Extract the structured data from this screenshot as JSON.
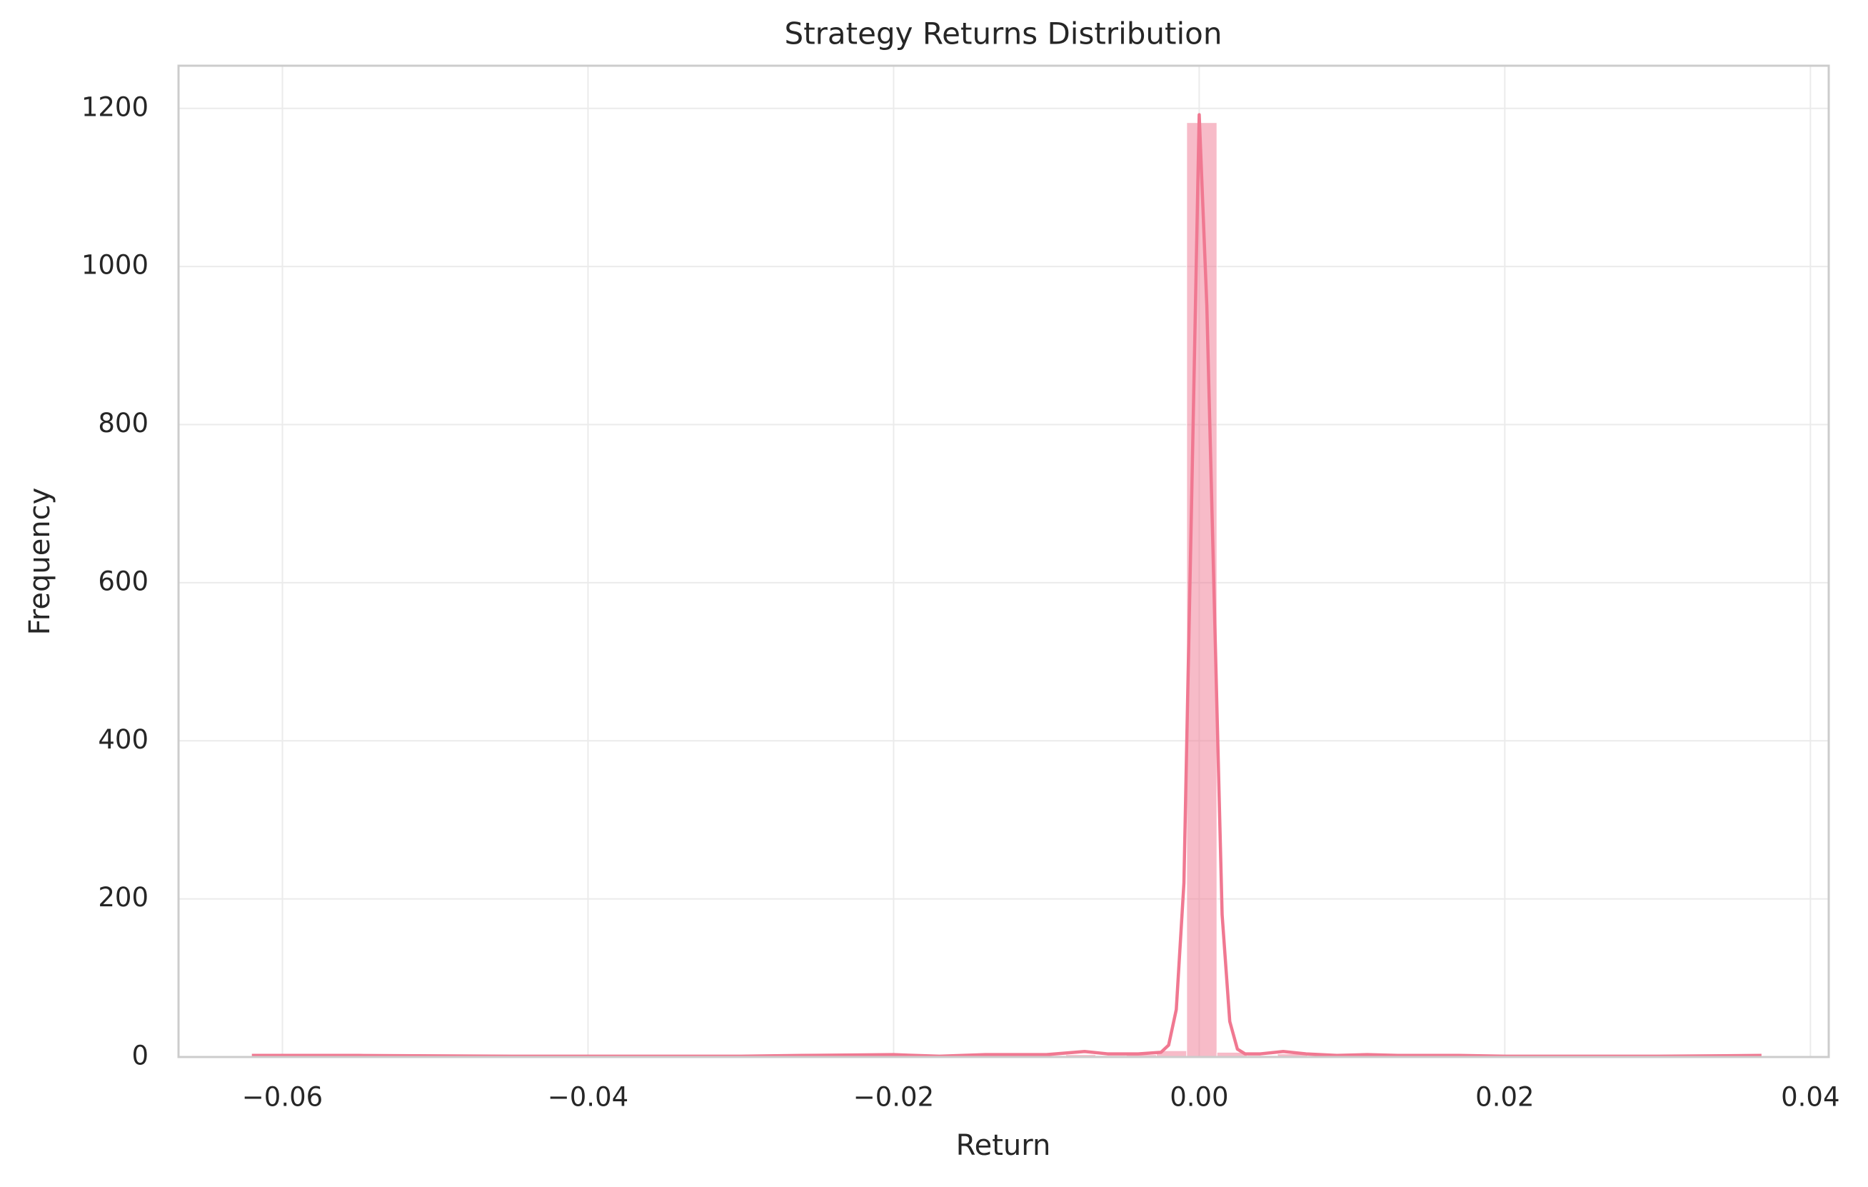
{
  "chart_data": {
    "type": "histogram",
    "title": "Strategy Returns Distribution",
    "x_label": "Return",
    "y_label": "Frequency",
    "bins": [
      -0.0622,
      -0.06022,
      -0.05824,
      -0.05626,
      -0.05428,
      -0.0523,
      -0.05032,
      -0.04834,
      -0.04636,
      -0.04438,
      -0.0424,
      -0.04042,
      -0.03844,
      -0.03646,
      -0.03448,
      -0.0325,
      -0.03052,
      -0.02854,
      -0.02656,
      -0.02458,
      -0.0226,
      -0.02062,
      -0.01864,
      -0.01666,
      -0.01468,
      -0.0127,
      -0.01072,
      -0.00874,
      -0.00676,
      -0.00478,
      -0.0028,
      -0.00082,
      0.00116,
      0.00314,
      0.00512,
      0.0071,
      0.00908,
      0.01106,
      0.01304,
      0.01502,
      0.017,
      0.01898,
      0.02096,
      0.02294,
      0.02492,
      0.0269,
      0.02888,
      0.03086,
      0.03284,
      0.03482,
      0.0368
    ],
    "values": [
      1,
      0,
      0,
      1,
      0,
      0,
      0,
      0,
      0,
      0,
      0,
      0,
      0,
      0,
      0,
      0,
      0,
      1,
      0,
      0,
      1,
      1,
      0,
      0,
      2,
      1,
      2,
      3,
      2,
      3,
      8,
      1182,
      6,
      2,
      4,
      2,
      1,
      2,
      1,
      1,
      1,
      0,
      0,
      0,
      0,
      0,
      0,
      0,
      0,
      1
    ],
    "color": "#f07891",
    "bar_opacity": 0.5,
    "kde": {
      "x": [
        -0.062,
        -0.055,
        -0.045,
        -0.03,
        -0.026,
        -0.02,
        -0.017,
        -0.014,
        -0.01,
        -0.0075,
        -0.006,
        -0.004,
        -0.0025,
        -0.002,
        -0.0015,
        -0.001,
        -0.0005,
        0,
        0.0005,
        0.0015,
        0.002,
        0.0025,
        0.003,
        0.004,
        0.0055,
        0.007,
        0.009,
        0.011,
        0.013,
        0.017,
        0.02,
        0.03,
        0.0368
      ],
      "values": [
        2,
        2,
        1,
        1,
        2,
        3,
        1,
        3,
        3,
        7,
        4,
        4,
        6,
        15,
        60,
        220,
        700,
        1192,
        950,
        180,
        45,
        10,
        4,
        4,
        7,
        4,
        2,
        3,
        2,
        2,
        1,
        1,
        2
      ]
    },
    "xlim": [
      -0.0668,
      0.0412
    ],
    "ylim": [
      0,
      1254
    ],
    "xticks": [
      {
        "value": -0.06,
        "label": "−0.06"
      },
      {
        "value": -0.04,
        "label": "−0.04"
      },
      {
        "value": -0.02,
        "label": "−0.02"
      },
      {
        "value": 0,
        "label": "0.00"
      },
      {
        "value": 0.02,
        "label": "0.02"
      },
      {
        "value": 0.04,
        "label": "0.04"
      }
    ],
    "yticks": [
      0,
      200,
      400,
      600,
      800,
      1000,
      1200
    ],
    "grid": true
  }
}
